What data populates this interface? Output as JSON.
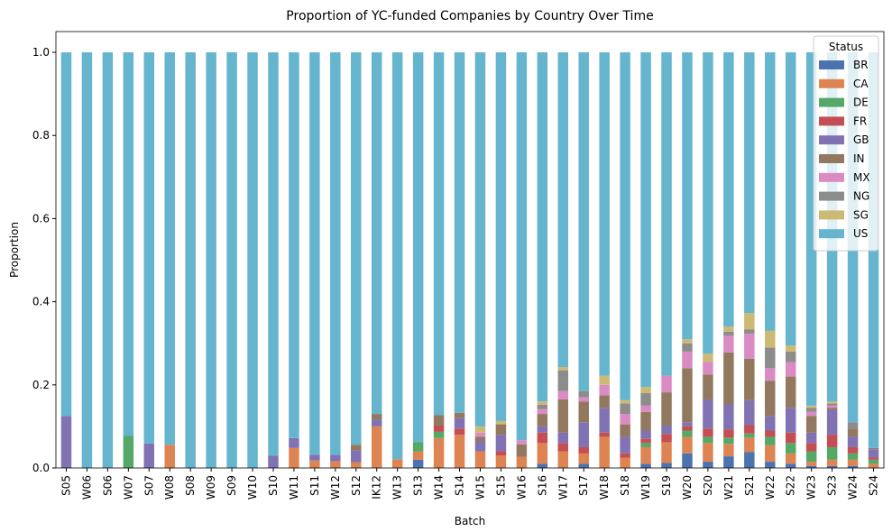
{
  "chart_data": {
    "type": "stacked_bar",
    "title": "Proportion of YC-funded Companies by Country Over Time",
    "x_label": "Batch",
    "y_label": "Proportion",
    "legend_title": "Status",
    "legend_position": "upper right",
    "categories": [
      "S05",
      "W06",
      "S06",
      "W07",
      "S07",
      "W08",
      "S08",
      "W09",
      "S09",
      "W10",
      "S10",
      "W11",
      "S11",
      "W12",
      "S12",
      "IK12",
      "W13",
      "S13",
      "W14",
      "S14",
      "W15",
      "S15",
      "W16",
      "S16",
      "W17",
      "S17",
      "W18",
      "S18",
      "W19",
      "S19",
      "W20",
      "S20",
      "W21",
      "S21",
      "W22",
      "S22",
      "W23",
      "S23",
      "W24",
      "S24"
    ],
    "ylim": [
      0,
      1.05
    ],
    "yticks": [
      {
        "value": 0,
        "label": "0.0"
      },
      0.2,
      0.4,
      0.6,
      0.8,
      {
        "value": 1,
        "label": "1.0"
      }
    ],
    "series": [
      {
        "name": "BR",
        "color": "#4c72b0",
        "values": [
          0,
          0,
          0,
          0,
          0,
          0,
          0,
          0,
          0,
          0,
          0,
          0,
          0,
          0,
          0,
          0,
          0,
          0.02,
          0,
          0,
          0,
          0,
          0,
          0.01,
          0,
          0.01,
          0,
          0,
          0.01,
          0.012,
          0.035,
          0.015,
          0.028,
          0.038,
          0.015,
          0.01,
          0.005,
          0.005,
          0.005,
          0
        ]
      },
      {
        "name": "CA",
        "color": "#dd8452",
        "values": [
          0,
          0,
          0,
          0,
          0,
          0.056,
          0,
          0,
          0,
          0,
          0,
          0.048,
          0.018,
          0.016,
          0.014,
          0.1,
          0.021,
          0.02,
          0.072,
          0.08,
          0.04,
          0.03,
          0.027,
          0.05,
          0.04,
          0.025,
          0.075,
          0.025,
          0.04,
          0.05,
          0.04,
          0.045,
          0.03,
          0.035,
          0.04,
          0.025,
          0.01,
          0.015,
          0.015,
          0.01
        ]
      },
      {
        "name": "DE",
        "color": "#55a868",
        "values": [
          0,
          0,
          0,
          0.077,
          0,
          0,
          0,
          0,
          0,
          0,
          0,
          0,
          0,
          0,
          0,
          0,
          0,
          0.022,
          0.015,
          0,
          0,
          0,
          0,
          0,
          0,
          0,
          0,
          0,
          0.01,
          0,
          0.015,
          0.015,
          0.015,
          0.01,
          0.02,
          0.025,
          0.025,
          0.03,
          0.015,
          0.01
        ]
      },
      {
        "name": "FR",
        "color": "#c44e52",
        "values": [
          0,
          0,
          0,
          0,
          0,
          0,
          0,
          0,
          0,
          0,
          0,
          0,
          0,
          0,
          0,
          0,
          0,
          0,
          0.015,
          0.015,
          0,
          0.01,
          0,
          0.025,
          0.02,
          0.015,
          0.01,
          0.01,
          0.01,
          0.02,
          0.01,
          0.02,
          0.02,
          0.02,
          0.015,
          0.025,
          0.02,
          0.03,
          0.015,
          0.005
        ]
      },
      {
        "name": "GB",
        "color": "#8172b3",
        "values": [
          0.125,
          0,
          0,
          0,
          0.059,
          0,
          0,
          0,
          0,
          0,
          0.03,
          0.024,
          0.014,
          0.016,
          0.028,
          0.017,
          0,
          0,
          0,
          0.025,
          0.025,
          0.04,
          0,
          0.015,
          0.025,
          0.06,
          0.06,
          0.04,
          0.02,
          0.02,
          0.01,
          0.07,
          0.06,
          0.06,
          0.035,
          0.06,
          0.025,
          0.06,
          0.025,
          0.02
        ]
      },
      {
        "name": "IN",
        "color": "#937860",
        "values": [
          0,
          0,
          0,
          0,
          0,
          0,
          0,
          0,
          0,
          0,
          0,
          0,
          0,
          0,
          0.014,
          0.013,
          0,
          0,
          0.025,
          0.013,
          0.01,
          0.025,
          0.03,
          0.03,
          0.08,
          0.05,
          0.03,
          0.03,
          0.045,
          0.08,
          0.13,
          0.06,
          0.125,
          0.1,
          0.085,
          0.075,
          0.04,
          0.005,
          0.02,
          0.003
        ]
      },
      {
        "name": "MX",
        "color": "#da8bc3",
        "values": [
          0,
          0,
          0,
          0,
          0,
          0,
          0,
          0,
          0,
          0,
          0,
          0,
          0,
          0,
          0,
          0,
          0,
          0,
          0,
          0,
          0.01,
          0,
          0.01,
          0.012,
          0.02,
          0.01,
          0.025,
          0.025,
          0.015,
          0.04,
          0.04,
          0.03,
          0.04,
          0.06,
          0.03,
          0.035,
          0.01,
          0.005,
          0,
          0
        ]
      },
      {
        "name": "NG",
        "color": "#8c8c8c",
        "values": [
          0,
          0,
          0,
          0,
          0,
          0,
          0,
          0,
          0,
          0,
          0,
          0,
          0,
          0,
          0,
          0,
          0,
          0,
          0,
          0,
          0,
          0,
          0,
          0.01,
          0.05,
          0.015,
          0,
          0.025,
          0.03,
          0,
          0.02,
          0,
          0.01,
          0.01,
          0.05,
          0.025,
          0.01,
          0.005,
          0.015,
          0
        ]
      },
      {
        "name": "SG",
        "color": "#ccb974",
        "values": [
          0,
          0,
          0,
          0,
          0,
          0,
          0,
          0,
          0,
          0,
          0,
          0,
          0,
          0,
          0,
          0,
          0,
          0,
          0,
          0,
          0.015,
          0.008,
          0,
          0.008,
          0.008,
          0,
          0.022,
          0.008,
          0.015,
          0,
          0.01,
          0.02,
          0.012,
          0.04,
          0.04,
          0.015,
          0.005,
          0.005,
          0,
          0
        ]
      },
      {
        "name": "US",
        "color": "#64b5cd",
        "values": [
          0.875,
          1,
          1,
          0.923,
          0.941,
          0.944,
          1,
          1,
          1,
          1,
          0.97,
          0.928,
          0.968,
          0.968,
          0.944,
          0.87,
          0.979,
          0.938,
          0.873,
          0.867,
          0.9,
          0.887,
          0.933,
          0.84,
          0.757,
          0.815,
          0.778,
          0.837,
          0.805,
          0.778,
          0.69,
          0.725,
          0.66,
          0.627,
          0.67,
          0.705,
          0.85,
          0.84,
          0.89,
          0.952
        ]
      }
    ]
  }
}
